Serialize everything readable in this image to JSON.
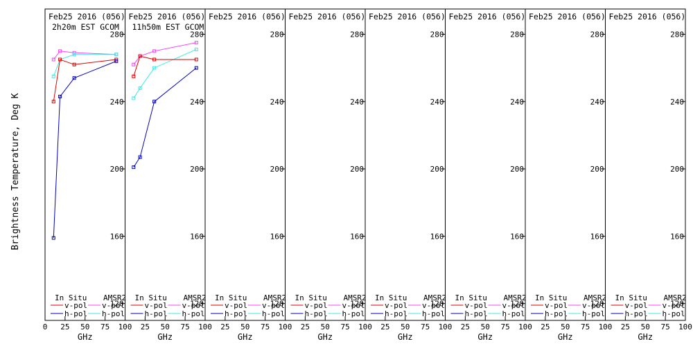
{
  "chart_data": {
    "type": "line",
    "ylabel": "Brightness Temperature, Deg K",
    "xlabel": "GHz",
    "xlim": [
      0,
      100
    ],
    "ylim": [
      110,
      295
    ],
    "xticks": [
      0,
      25,
      50,
      75,
      100
    ],
    "xtick_labels": [
      "0",
      "25",
      "50",
      "75",
      "100"
    ],
    "yticks": [
      120,
      160,
      200,
      240,
      280
    ],
    "ytick_labels": [
      "120",
      "160",
      "200",
      "240",
      "280"
    ],
    "legend": {
      "insitu_header": "In Situ",
      "amsr2_header": "AMSR2",
      "vpol_label": "v-pol",
      "hpol_label": "h-pol"
    },
    "colors": {
      "insitu_v": "#e00000",
      "insitu_h": "#0000c0",
      "amsr2_v": "#ff40ff",
      "amsr2_h": "#40e8e8"
    },
    "panels": [
      {
        "title": "Feb25 2016 (056)",
        "subtitle": "2h20m EST GCOM",
        "series": [
          {
            "key": "amsr2_v",
            "x": [
              10.65,
              18.7,
              36.5,
              89
            ],
            "y": [
              265,
              270,
              269,
              268
            ]
          },
          {
            "key": "amsr2_h",
            "x": [
              10.65,
              18.7,
              36.5,
              89
            ],
            "y": [
              255,
              265,
              268,
              268
            ]
          },
          {
            "key": "insitu_v",
            "x": [
              10.65,
              18.7,
              36.5,
              89
            ],
            "y": [
              240,
              265,
              262,
              265
            ]
          },
          {
            "key": "insitu_h",
            "x": [
              10.65,
              18.7,
              36.5,
              89
            ],
            "y": [
              159,
              243,
              254,
              264
            ]
          }
        ]
      },
      {
        "title": "Feb25 2016 (056)",
        "subtitle": "11h50m EST GCOM",
        "series": [
          {
            "key": "amsr2_v",
            "x": [
              10.65,
              18.7,
              36.5,
              89
            ],
            "y": [
              262,
              267,
              270,
              275
            ]
          },
          {
            "key": "amsr2_h",
            "x": [
              10.65,
              18.7,
              36.5,
              89
            ],
            "y": [
              242,
              248,
              260,
              271
            ]
          },
          {
            "key": "insitu_v",
            "x": [
              10.65,
              18.7,
              36.5,
              89
            ],
            "y": [
              255,
              267,
              265,
              265
            ]
          },
          {
            "key": "insitu_h",
            "x": [
              10.65,
              18.7,
              36.5,
              89
            ],
            "y": [
              201,
              207,
              240,
              260
            ]
          }
        ]
      },
      {
        "title": "Feb25 2016 (056)",
        "subtitle": "",
        "series": []
      },
      {
        "title": "Feb25 2016 (056)",
        "subtitle": "",
        "series": []
      },
      {
        "title": "Feb25 2016 (056)",
        "subtitle": "",
        "series": []
      },
      {
        "title": "Feb25 2016 (056)",
        "subtitle": "",
        "series": []
      },
      {
        "title": "Feb25 2016 (056)",
        "subtitle": "",
        "series": []
      },
      {
        "title": "Feb25 2016 (056)",
        "subtitle": "",
        "series": []
      }
    ]
  }
}
